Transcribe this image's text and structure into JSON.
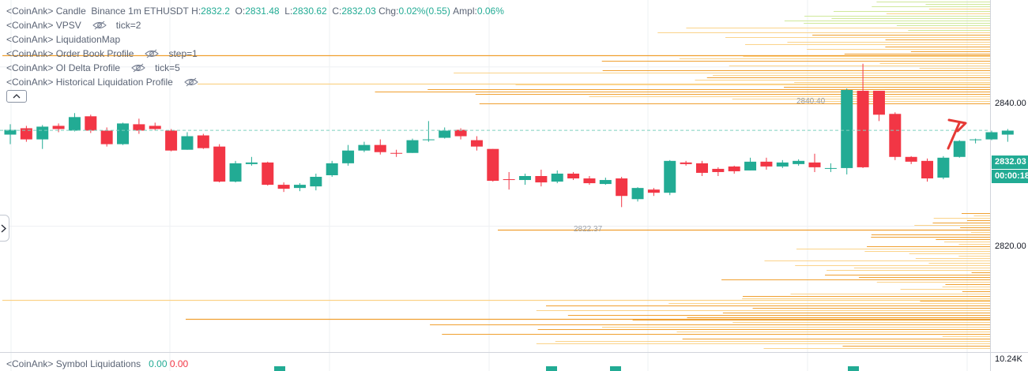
{
  "legend": {
    "candle": {
      "prefix": "<CoinAnk>",
      "name": "Candle",
      "exchange": "Binance",
      "interval": "1m",
      "symbol": "ETHUSDT",
      "h_label": "H:",
      "h_value": "2832.2",
      "o_label": "O:",
      "o_value": "2831.48",
      "l_label": "L:",
      "l_value": "2830.62",
      "c_label": "C:",
      "c_value": "2832.03",
      "chg_label": "Chg:",
      "chg_value": "0.02%(0.55)",
      "ampl_label": "Ampl:",
      "ampl_value": "0.06%"
    },
    "indicators": [
      {
        "prefix": "<CoinAnk>",
        "name": "VPSV",
        "hidden": true,
        "param": "tick=2"
      },
      {
        "prefix": "<CoinAnk>",
        "name": "LiquidationMap",
        "hidden": false,
        "param": ""
      },
      {
        "prefix": "<CoinAnk>",
        "name": "Order Book Profile",
        "hidden": true,
        "param": "step=1"
      },
      {
        "prefix": "<CoinAnk>",
        "name": "OI Delta Profile",
        "hidden": true,
        "param": "tick=5"
      },
      {
        "prefix": "<CoinAnk>",
        "name": "Historical Liquidation Profile",
        "hidden": true,
        "param": ""
      }
    ]
  },
  "price_axis": {
    "labels": [
      "2840.00",
      "2820.00"
    ],
    "current_price": "2832.03",
    "countdown": "00:00:18"
  },
  "markers": {
    "high": "2840.40",
    "low": "2822.37"
  },
  "subpane": {
    "prefix": "<CoinAnk>",
    "name": "Symbol Liquidations",
    "value_long": "0.00",
    "value_short": "0.00",
    "axis_label": "10.24K"
  },
  "colors": {
    "up": "#22ab94",
    "down": "#f23645",
    "profile_orange": "#f0a030",
    "profile_light": "#fbd38a",
    "profile_green": "#cfe89a",
    "grid": "#eef0f3",
    "dashed_price": "#7fd0bf",
    "pointer_red": "#e53935"
  },
  "chart_data": {
    "type": "candlestick",
    "symbol": "ETHUSDT",
    "interval": "1m",
    "ylim": [
      2804.2,
      2848.4
    ],
    "candles": [
      {
        "o": 2831.5,
        "h": 2832.8,
        "l": 2830.3,
        "c": 2832.1
      },
      {
        "o": 2832.3,
        "h": 2832.6,
        "l": 2830.6,
        "c": 2830.9
      },
      {
        "o": 2830.9,
        "h": 2832.7,
        "l": 2829.7,
        "c": 2832.5
      },
      {
        "o": 2832.6,
        "h": 2832.9,
        "l": 2831.8,
        "c": 2832.2
      },
      {
        "o": 2832.0,
        "h": 2834.2,
        "l": 2831.9,
        "c": 2833.7
      },
      {
        "o": 2833.8,
        "h": 2834.0,
        "l": 2831.7,
        "c": 2832.0
      },
      {
        "o": 2832.0,
        "h": 2832.4,
        "l": 2830.0,
        "c": 2830.3
      },
      {
        "o": 2830.3,
        "h": 2833.0,
        "l": 2830.2,
        "c": 2832.9
      },
      {
        "o": 2832.8,
        "h": 2833.5,
        "l": 2831.6,
        "c": 2832.0
      },
      {
        "o": 2832.6,
        "h": 2833.0,
        "l": 2832.0,
        "c": 2832.2
      },
      {
        "o": 2832.0,
        "h": 2832.2,
        "l": 2829.4,
        "c": 2829.5
      },
      {
        "o": 2829.6,
        "h": 2831.8,
        "l": 2829.6,
        "c": 2831.3
      },
      {
        "o": 2831.4,
        "h": 2831.6,
        "l": 2829.7,
        "c": 2829.8
      },
      {
        "o": 2830.0,
        "h": 2830.3,
        "l": 2825.5,
        "c": 2825.6
      },
      {
        "o": 2825.6,
        "h": 2828.2,
        "l": 2825.5,
        "c": 2827.9
      },
      {
        "o": 2827.8,
        "h": 2828.7,
        "l": 2827.6,
        "c": 2828.0
      },
      {
        "o": 2828.0,
        "h": 2828.1,
        "l": 2825.1,
        "c": 2825.2
      },
      {
        "o": 2825.2,
        "h": 2825.5,
        "l": 2824.3,
        "c": 2824.7
      },
      {
        "o": 2824.8,
        "h": 2825.4,
        "l": 2824.4,
        "c": 2825.2
      },
      {
        "o": 2825.0,
        "h": 2826.6,
        "l": 2824.5,
        "c": 2826.2
      },
      {
        "o": 2826.4,
        "h": 2828.2,
        "l": 2826.2,
        "c": 2827.9
      },
      {
        "o": 2827.9,
        "h": 2830.2,
        "l": 2827.6,
        "c": 2829.5
      },
      {
        "o": 2829.5,
        "h": 2830.6,
        "l": 2829.3,
        "c": 2830.2
      },
      {
        "o": 2830.2,
        "h": 2830.9,
        "l": 2829.0,
        "c": 2829.3
      },
      {
        "o": 2829.2,
        "h": 2829.6,
        "l": 2828.7,
        "c": 2829.1
      },
      {
        "o": 2829.2,
        "h": 2831.0,
        "l": 2829.2,
        "c": 2830.8
      },
      {
        "o": 2830.8,
        "h": 2833.2,
        "l": 2830.6,
        "c": 2830.9
      },
      {
        "o": 2831.1,
        "h": 2832.4,
        "l": 2831.0,
        "c": 2832.0
      },
      {
        "o": 2832.1,
        "h": 2832.3,
        "l": 2830.9,
        "c": 2831.3
      },
      {
        "o": 2830.8,
        "h": 2831.3,
        "l": 2829.5,
        "c": 2830.0
      },
      {
        "o": 2829.7,
        "h": 2829.7,
        "l": 2825.6,
        "c": 2825.7
      },
      {
        "o": 2825.9,
        "h": 2826.8,
        "l": 2824.6,
        "c": 2825.8
      },
      {
        "o": 2825.8,
        "h": 2826.6,
        "l": 2825.2,
        "c": 2826.3
      },
      {
        "o": 2826.3,
        "h": 2827.1,
        "l": 2825.0,
        "c": 2825.5
      },
      {
        "o": 2825.6,
        "h": 2827.0,
        "l": 2825.4,
        "c": 2826.6
      },
      {
        "o": 2826.6,
        "h": 2826.8,
        "l": 2825.8,
        "c": 2826.0
      },
      {
        "o": 2826.0,
        "h": 2826.3,
        "l": 2825.2,
        "c": 2825.4
      },
      {
        "o": 2825.3,
        "h": 2826.1,
        "l": 2825.2,
        "c": 2825.8
      },
      {
        "o": 2826.0,
        "h": 2826.2,
        "l": 2822.4,
        "c": 2823.8
      },
      {
        "o": 2823.4,
        "h": 2824.9,
        "l": 2823.1,
        "c": 2824.8
      },
      {
        "o": 2824.6,
        "h": 2824.8,
        "l": 2823.8,
        "c": 2824.2
      },
      {
        "o": 2824.2,
        "h": 2828.3,
        "l": 2823.9,
        "c": 2828.2
      },
      {
        "o": 2828.0,
        "h": 2828.2,
        "l": 2827.6,
        "c": 2827.8
      },
      {
        "o": 2827.9,
        "h": 2828.2,
        "l": 2826.3,
        "c": 2826.7
      },
      {
        "o": 2827.2,
        "h": 2827.4,
        "l": 2826.3,
        "c": 2826.8
      },
      {
        "o": 2827.5,
        "h": 2827.6,
        "l": 2826.6,
        "c": 2826.9
      },
      {
        "o": 2827.0,
        "h": 2828.6,
        "l": 2827.0,
        "c": 2828.1
      },
      {
        "o": 2828.1,
        "h": 2828.6,
        "l": 2827.1,
        "c": 2827.5
      },
      {
        "o": 2827.5,
        "h": 2828.3,
        "l": 2827.3,
        "c": 2828.0
      },
      {
        "o": 2827.8,
        "h": 2828.4,
        "l": 2827.6,
        "c": 2828.2
      },
      {
        "o": 2828.0,
        "h": 2829.1,
        "l": 2826.8,
        "c": 2827.4
      },
      {
        "o": 2827.3,
        "h": 2827.9,
        "l": 2826.8,
        "c": 2827.3
      },
      {
        "o": 2827.3,
        "h": 2837.3,
        "l": 2826.5,
        "c": 2837.1
      },
      {
        "o": 2837.0,
        "h": 2840.4,
        "l": 2827.3,
        "c": 2827.4
      },
      {
        "o": 2837.0,
        "h": 2837.0,
        "l": 2833.2,
        "c": 2834.0
      },
      {
        "o": 2834.1,
        "h": 2834.3,
        "l": 2828.3,
        "c": 2828.7
      },
      {
        "o": 2828.7,
        "h": 2828.8,
        "l": 2827.8,
        "c": 2828.1
      },
      {
        "o": 2828.2,
        "h": 2828.5,
        "l": 2825.6,
        "c": 2826.0
      },
      {
        "o": 2826.1,
        "h": 2828.8,
        "l": 2825.9,
        "c": 2828.6
      },
      {
        "o": 2828.7,
        "h": 2830.8,
        "l": 2828.6,
        "c": 2830.7
      },
      {
        "o": 2830.8,
        "h": 2831.0,
        "l": 2830.4,
        "c": 2830.9
      },
      {
        "o": 2830.9,
        "h": 2832.0,
        "l": 2830.8,
        "c": 2831.8
      },
      {
        "o": 2831.5,
        "h": 2832.2,
        "l": 2830.6,
        "c": 2832.0
      }
    ]
  }
}
